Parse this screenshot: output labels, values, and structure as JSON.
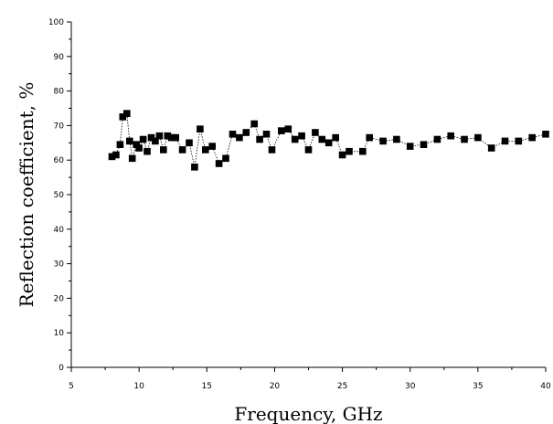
{
  "chart_data": {
    "type": "line",
    "title": "",
    "xlabel": "Frequency, GHz",
    "ylabel": "Reflection coefficient, %",
    "xlim": [
      5,
      40
    ],
    "ylim": [
      0,
      100
    ],
    "x_ticks": [
      "5",
      "10",
      "15",
      "20",
      "25",
      "30",
      "35",
      "40"
    ],
    "y_ticks": [
      "0",
      "10",
      "20",
      "30",
      "40",
      "50",
      "60",
      "70",
      "80",
      "90",
      "100"
    ],
    "grid": false,
    "marker": "square",
    "line_style": "dotted",
    "color": "#000000",
    "series": [
      {
        "x": [
          8.0,
          8.3,
          8.6,
          8.8,
          9.1,
          9.3,
          9.5,
          9.8,
          10.0,
          10.3,
          10.6,
          10.9,
          11.2,
          11.5,
          11.8,
          12.1,
          12.4,
          12.7,
          13.2,
          13.7,
          14.1,
          14.5,
          14.9,
          15.4,
          15.9,
          16.4,
          16.9,
          17.4,
          17.9,
          18.5,
          18.9,
          19.4,
          19.8,
          20.5,
          21.0,
          21.5,
          22.0,
          22.5,
          23.0,
          23.5,
          24.0,
          24.5,
          25.0,
          25.5,
          26.5,
          27.0,
          28.0,
          29.0,
          30.0,
          31.0,
          32.0,
          33.0,
          34.0,
          35.0,
          36.0,
          37.0,
          38.0,
          39.0,
          40.0
        ],
        "y": [
          61.0,
          61.5,
          64.5,
          72.5,
          73.5,
          65.5,
          60.5,
          64.5,
          63.5,
          66.0,
          62.5,
          66.5,
          65.5,
          67.0,
          63.0,
          67.0,
          66.5,
          66.5,
          63.0,
          65.0,
          58.0,
          69.0,
          63.0,
          64.0,
          59.0,
          60.5,
          67.5,
          66.5,
          68.0,
          70.5,
          66.0,
          67.5,
          63.0,
          68.5,
          69.0,
          66.0,
          67.0,
          63.0,
          68.0,
          66.0,
          65.0,
          66.5,
          61.5,
          62.5,
          62.5,
          66.5,
          65.5,
          66.0,
          64.0,
          64.5,
          66.0,
          67.0,
          66.0,
          66.5,
          63.5,
          65.5,
          65.5,
          66.5,
          67.5
        ]
      }
    ]
  }
}
